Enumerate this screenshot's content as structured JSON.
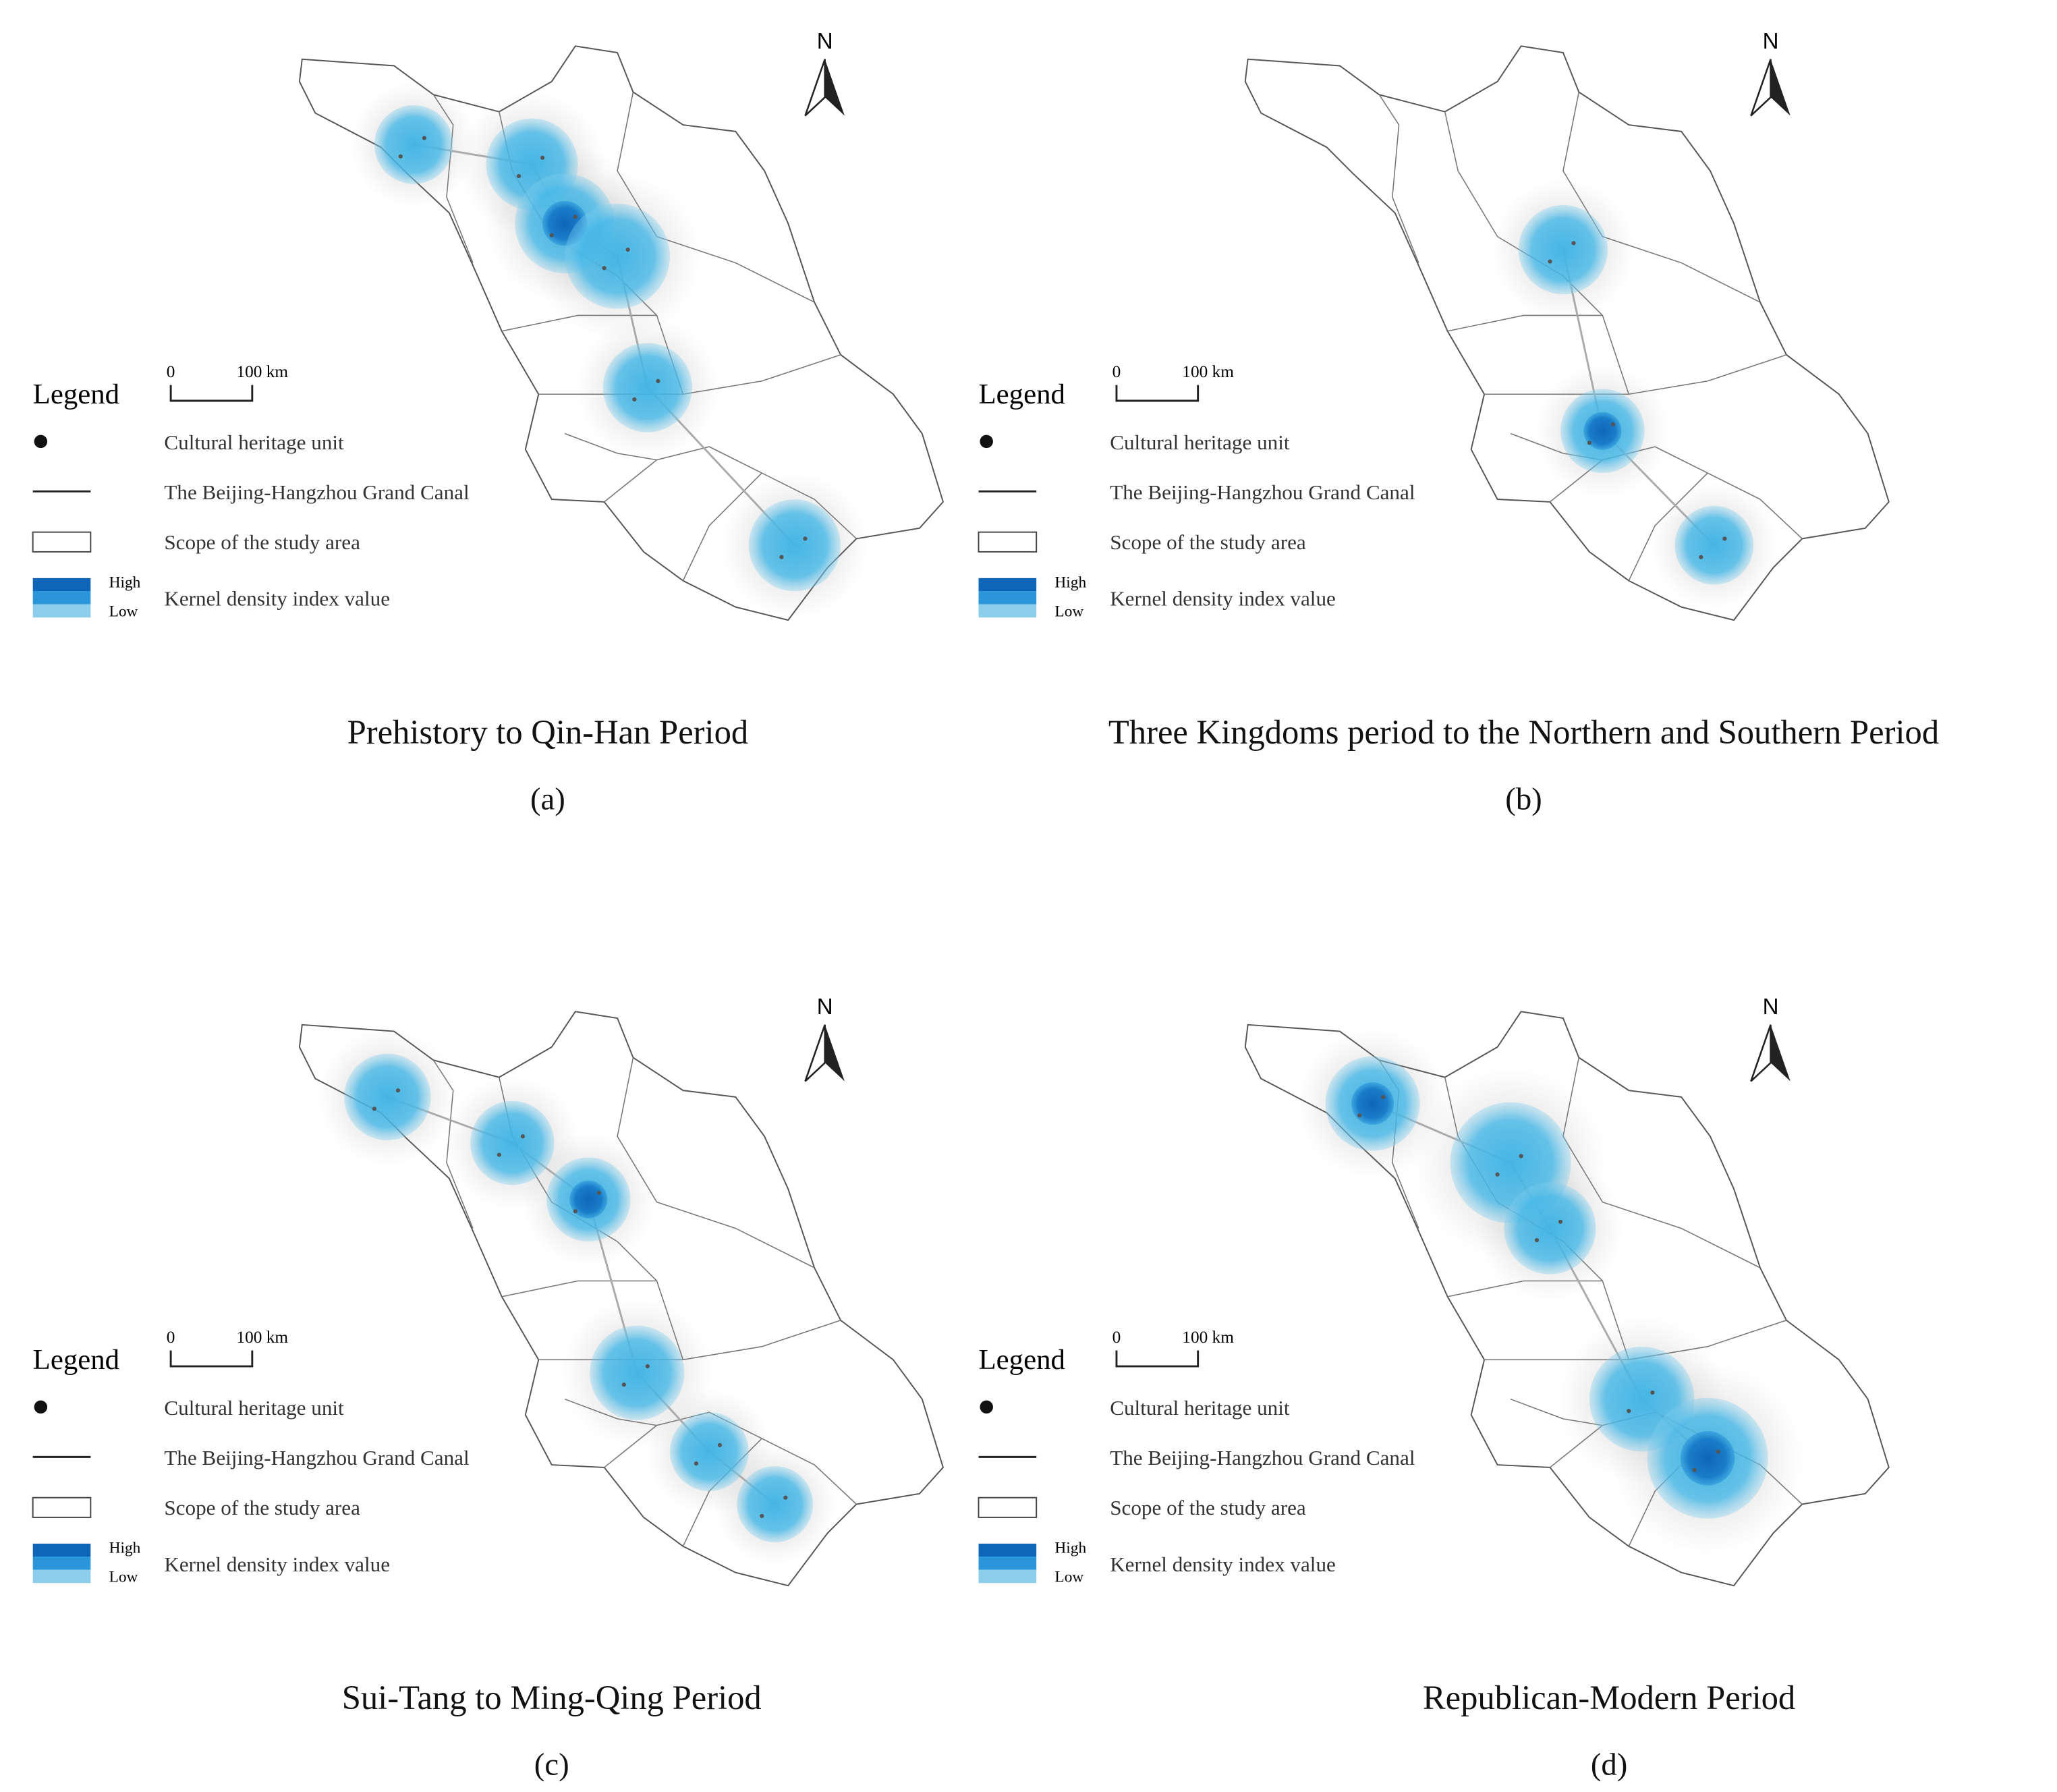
{
  "panels": [
    {
      "title": "Prehistory to Qin-Han Period",
      "label": "(a)",
      "north": "N",
      "scale": {
        "zero": "0",
        "distance": "100 km"
      },
      "legend": {
        "heading": "Legend",
        "items": [
          "Cultural heritage unit",
          "The Beijing-Hangzhou Grand Canal",
          "Scope of the study area",
          "Kernel density index value"
        ],
        "high": "High",
        "low": "Low"
      }
    },
    {
      "title": "Three Kingdoms period to the Northern and Southern Period",
      "label": "(b)",
      "north": "N",
      "scale": {
        "zero": "0",
        "distance": "100 km"
      },
      "legend": {
        "heading": "Legend",
        "items": [
          "Cultural heritage unit",
          "The Beijing-Hangzhou Grand Canal",
          "Scope of the study area",
          "Kernel density index value"
        ],
        "high": "High",
        "low": "Low"
      }
    },
    {
      "title": "Sui-Tang to Ming-Qing Period",
      "label": "(c)",
      "north": "N",
      "scale": {
        "zero": "0",
        "distance": "100 km"
      },
      "legend": {
        "heading": "Legend",
        "items": [
          "Cultural heritage unit",
          "The Beijing-Hangzhou Grand Canal",
          "Scope of the study area",
          "Kernel density index value"
        ],
        "high": "High",
        "low": "Low"
      }
    },
    {
      "title": "Republican-Modern Period",
      "label": "(d)",
      "north": "N",
      "scale": {
        "zero": "0",
        "distance": "100 km"
      },
      "legend": {
        "heading": "Legend",
        "items": [
          "Cultural heritage unit",
          "The Beijing-Hangzhou Grand Canal",
          "Scope of the study area",
          "Kernel density index value"
        ],
        "high": "High",
        "low": "Low"
      }
    }
  ]
}
